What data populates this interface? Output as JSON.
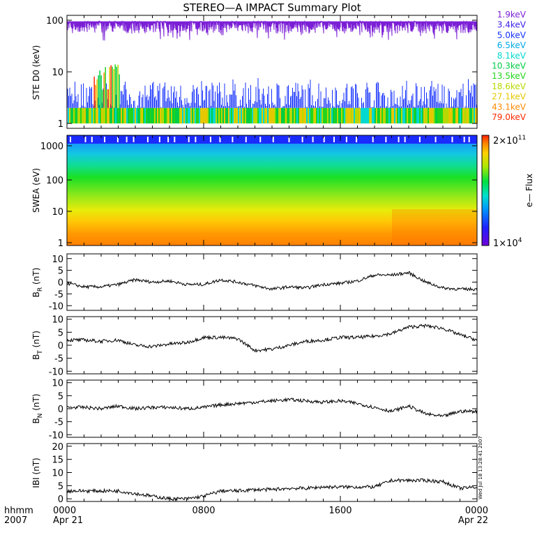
{
  "title": "STEREO—A IMPACT Summary Plot",
  "time_axis": {
    "ticks": [
      {
        "hhmm": "0000",
        "date": "Apr 21",
        "hour": 0
      },
      {
        "hhmm": "0800",
        "date": "",
        "hour": 8
      },
      {
        "hhmm": "1600",
        "date": "",
        "hour": 16
      },
      {
        "hhmm": "0000",
        "date": "Apr 22",
        "hour": 24
      }
    ],
    "left_label_top": "hhmm",
    "left_label_bottom": "2007",
    "range_hours": [
      0,
      24
    ]
  },
  "colors": {
    "energy_channels": [
      "#7b1fd6",
      "#3a1ee8",
      "#1430ff",
      "#00a8e8",
      "#00d8d0",
      "#00cc44",
      "#22d51c",
      "#b8d800",
      "#e6c800",
      "#ff8a00",
      "#ff2a00"
    ],
    "trace": "#000000"
  },
  "colorbar": {
    "label": "e— Flux",
    "max_label": "2×10",
    "max_exp": "11",
    "min_label": "1×10",
    "min_exp": "4"
  },
  "timestamp": "Wed Jul 18 13:28:41 2007",
  "chart_data": [
    {
      "type": "line",
      "panel": "STE D0",
      "ylabel": "STE D0 (keV)",
      "yscale": "log",
      "ylim": [
        0.8,
        100
      ],
      "yticks": [
        "100",
        "10",
        "1"
      ],
      "legend": [
        "1.9keV",
        "3.4keV",
        "5.0keV",
        "6.5keV",
        "8.1keV",
        "10.3keV",
        "13.5keV",
        "18.6keV",
        "27.1keV",
        "43.1keV",
        "79.0keV"
      ],
      "note": "Flux traces per energy channel; upper channel fluctuates between ~45 and ~95, lower channels mostly between 1 and 5 with a burst reaching ~18 near 0200-0300."
    },
    {
      "type": "heatmap",
      "panel": "SWEA",
      "ylabel": "SWEA (eV)",
      "yscale": "log",
      "ylim": [
        1,
        2000
      ],
      "yticks": [
        "1000",
        "100",
        "10",
        "1"
      ],
      "zlabel": "e— Flux",
      "zlim": [
        "1×10^4",
        "2×10^11"
      ]
    },
    {
      "type": "line",
      "panel": "BR",
      "ylabel_main": "B",
      "ylabel_sub": "R",
      "ylabel_unit": " (nT)",
      "ylim": [
        -12,
        12
      ],
      "yticks": [
        "10",
        "5",
        "0",
        "-5",
        "-10"
      ],
      "x": [
        0,
        1,
        2,
        3,
        4,
        5,
        6,
        7,
        8,
        9,
        10,
        11,
        12,
        13,
        14,
        15,
        16,
        17,
        18,
        19,
        20,
        21,
        22,
        23,
        24
      ],
      "y": [
        -0.5,
        -2,
        -2,
        -1,
        1,
        0,
        0.5,
        -1,
        -1,
        1,
        0,
        -1.5,
        -3,
        -2,
        -2.5,
        -1,
        -0.5,
        0.5,
        3,
        3,
        4,
        0,
        -2.5,
        -3,
        -3
      ]
    },
    {
      "type": "line",
      "panel": "BT",
      "ylabel_main": "B",
      "ylabel_sub": "T",
      "ylabel_unit": " (nT)",
      "ylim": [
        -11,
        11
      ],
      "yticks": [
        "10",
        "5",
        "0",
        "-5",
        "-10"
      ],
      "x": [
        0,
        1,
        2,
        3,
        4,
        5,
        6,
        7,
        8,
        9,
        10,
        11,
        12,
        13,
        14,
        15,
        16,
        17,
        18,
        19,
        20,
        21,
        22,
        23,
        24
      ],
      "y": [
        2,
        2,
        1.5,
        2,
        0,
        -0.5,
        0.5,
        1,
        3,
        3,
        2.5,
        -2,
        -1.5,
        0,
        1.5,
        2,
        3,
        3,
        3.5,
        4.5,
        7,
        7.5,
        6.5,
        4,
        2
      ]
    },
    {
      "type": "line",
      "panel": "BN",
      "ylabel_main": "B",
      "ylabel_sub": "N",
      "ylabel_unit": " (nT)",
      "ylim": [
        -11,
        11
      ],
      "yticks": [
        "10",
        "5",
        "0",
        "-5",
        "-10"
      ],
      "x": [
        0,
        1,
        2,
        3,
        4,
        5,
        6,
        7,
        8,
        9,
        10,
        11,
        12,
        13,
        14,
        15,
        16,
        17,
        18,
        19,
        20,
        21,
        22,
        23,
        24
      ],
      "y": [
        0.5,
        0.5,
        0,
        1,
        0,
        0.5,
        0.5,
        0,
        0.5,
        1.5,
        2,
        2.5,
        3,
        3.5,
        3,
        2.5,
        3,
        2,
        0.5,
        -1,
        1,
        -2,
        -3,
        -1,
        -1
      ]
    },
    {
      "type": "line",
      "panel": "|B|",
      "ylabel": "IBI (nT)",
      "ylim": [
        -1,
        21
      ],
      "yticks": [
        "20",
        "15",
        "10",
        "5",
        "0"
      ],
      "x": [
        0,
        1,
        2,
        3,
        4,
        5,
        6,
        7,
        8,
        9,
        10,
        11,
        12,
        13,
        14,
        15,
        16,
        17,
        18,
        19,
        20,
        21,
        22,
        23,
        24
      ],
      "y": [
        3,
        3,
        3,
        3,
        2,
        1,
        0,
        0,
        1,
        3,
        3,
        3.5,
        3.5,
        4,
        4,
        4.5,
        4.5,
        4.5,
        4.5,
        7,
        7,
        7,
        6.5,
        4,
        4.5
      ]
    }
  ]
}
